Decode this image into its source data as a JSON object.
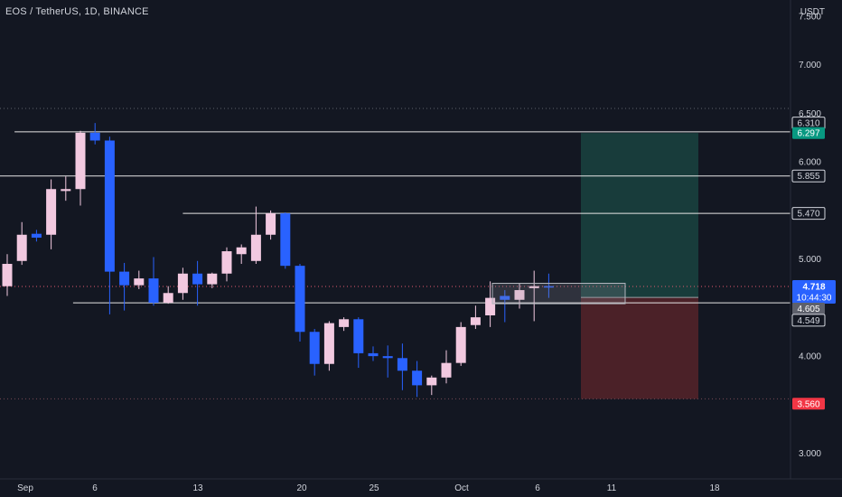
{
  "header": {
    "title": "EOS / TetherUS, 1D, BINANCE"
  },
  "price_axis": {
    "currency": "USDT",
    "ticks": [
      "7.500",
      "7.000",
      "6.500",
      "6.000",
      "5.500",
      "5.000",
      "4.500",
      "4.000",
      "3.500",
      "3.000"
    ]
  },
  "time_axis": {
    "labels": [
      "Sep",
      "6",
      "13",
      "20",
      "25",
      "Oct",
      "6",
      "11",
      "18"
    ]
  },
  "colors": {
    "background": "#131722",
    "up_candle": "#f2c9e0",
    "down_candle": "#2962ff",
    "target_zone": "#1f6b5c",
    "stop_zone": "#7a2a2e",
    "price_tag": "#2962ff",
    "target_tag": "#089981",
    "stop_tag": "#f23645"
  },
  "price_tags": {
    "level_6310": "6.310",
    "target": "6.297",
    "level_5855": "5.855",
    "level_5470": "5.470",
    "last_price": "4.718",
    "countdown": "10:44:30",
    "entry": "4.605",
    "level_4549": "4.549",
    "stop": "3.560"
  },
  "chart_data": {
    "type": "candlestick",
    "symbol": "EOS / TetherUS",
    "interval": "1D",
    "exchange": "BINANCE",
    "ylim": [
      2.55,
      7.62
    ],
    "y_ticks": [
      3.0,
      3.5,
      4.0,
      4.5,
      5.0,
      5.5,
      6.0,
      6.5,
      7.0,
      7.5
    ],
    "candles": [
      {
        "x": 0,
        "o": 4.72,
        "h": 5.05,
        "l": 4.62,
        "c": 4.95
      },
      {
        "x": 1,
        "o": 4.98,
        "h": 5.38,
        "l": 4.94,
        "c": 5.25
      },
      {
        "x": 2,
        "o": 5.26,
        "h": 5.3,
        "l": 5.18,
        "c": 5.22
      },
      {
        "x": 3,
        "o": 5.25,
        "h": 5.82,
        "l": 5.1,
        "c": 5.72
      },
      {
        "x": 4,
        "o": 5.7,
        "h": 5.85,
        "l": 5.6,
        "c": 5.72
      },
      {
        "x": 5,
        "o": 5.72,
        "h": 6.32,
        "l": 5.55,
        "c": 6.3
      },
      {
        "x": 6,
        "o": 6.3,
        "h": 6.4,
        "l": 6.18,
        "c": 6.22
      },
      {
        "x": 7,
        "o": 6.22,
        "h": 6.26,
        "l": 4.43,
        "c": 4.87
      },
      {
        "x": 8,
        "o": 4.87,
        "h": 4.96,
        "l": 4.47,
        "c": 4.73
      },
      {
        "x": 9,
        "o": 4.73,
        "h": 4.88,
        "l": 4.69,
        "c": 4.8
      },
      {
        "x": 10,
        "o": 4.8,
        "h": 5.02,
        "l": 4.52,
        "c": 4.55
      },
      {
        "x": 11,
        "o": 4.55,
        "h": 4.72,
        "l": 4.54,
        "c": 4.65
      },
      {
        "x": 12,
        "o": 4.65,
        "h": 4.91,
        "l": 4.58,
        "c": 4.85
      },
      {
        "x": 13,
        "o": 4.85,
        "h": 4.98,
        "l": 4.52,
        "c": 4.74
      },
      {
        "x": 14,
        "o": 4.74,
        "h": 4.86,
        "l": 4.7,
        "c": 4.85
      },
      {
        "x": 15,
        "o": 4.85,
        "h": 5.12,
        "l": 4.77,
        "c": 5.08
      },
      {
        "x": 16,
        "o": 5.05,
        "h": 5.15,
        "l": 4.95,
        "c": 5.12
      },
      {
        "x": 17,
        "o": 4.98,
        "h": 5.54,
        "l": 4.95,
        "c": 5.25
      },
      {
        "x": 18,
        "o": 5.25,
        "h": 5.5,
        "l": 5.2,
        "c": 5.47
      },
      {
        "x": 19,
        "o": 5.47,
        "h": 5.48,
        "l": 4.9,
        "c": 4.93
      },
      {
        "x": 20,
        "o": 4.93,
        "h": 4.95,
        "l": 4.15,
        "c": 4.25
      },
      {
        "x": 21,
        "o": 4.25,
        "h": 4.28,
        "l": 3.8,
        "c": 3.92
      },
      {
        "x": 22,
        "o": 3.92,
        "h": 4.36,
        "l": 3.85,
        "c": 4.34
      },
      {
        "x": 23,
        "o": 4.3,
        "h": 4.4,
        "l": 4.26,
        "c": 4.38
      },
      {
        "x": 24,
        "o": 4.38,
        "h": 4.4,
        "l": 3.88,
        "c": 4.03
      },
      {
        "x": 25,
        "o": 4.03,
        "h": 4.1,
        "l": 3.95,
        "c": 4.0
      },
      {
        "x": 26,
        "o": 4.0,
        "h": 4.11,
        "l": 3.78,
        "c": 3.98
      },
      {
        "x": 27,
        "o": 3.98,
        "h": 4.13,
        "l": 3.65,
        "c": 3.85
      },
      {
        "x": 28,
        "o": 3.85,
        "h": 3.95,
        "l": 3.58,
        "c": 3.7
      },
      {
        "x": 29,
        "o": 3.7,
        "h": 3.8,
        "l": 3.6,
        "c": 3.78
      },
      {
        "x": 30,
        "o": 3.78,
        "h": 4.06,
        "l": 3.72,
        "c": 3.93
      },
      {
        "x": 31,
        "o": 3.93,
        "h": 4.35,
        "l": 3.9,
        "c": 4.3
      },
      {
        "x": 32,
        "o": 4.32,
        "h": 4.52,
        "l": 4.28,
        "c": 4.4
      },
      {
        "x": 33,
        "o": 4.42,
        "h": 4.77,
        "l": 4.3,
        "c": 4.6
      },
      {
        "x": 34,
        "o": 4.62,
        "h": 4.68,
        "l": 4.35,
        "c": 4.58
      },
      {
        "x": 35,
        "o": 4.58,
        "h": 4.75,
        "l": 4.49,
        "c": 4.68
      },
      {
        "x": 36,
        "o": 4.7,
        "h": 4.88,
        "l": 4.36,
        "c": 4.72
      },
      {
        "x": 37,
        "o": 4.72,
        "h": 4.85,
        "l": 4.6,
        "c": 4.71
      }
    ],
    "horizontal_levels": [
      {
        "price": 6.31,
        "label": "6.310",
        "from_x": 0.5
      },
      {
        "price": 5.855,
        "label": "5.855",
        "from_x": -2
      },
      {
        "price": 5.47,
        "label": "5.470",
        "from_x": 12
      },
      {
        "price": 4.549,
        "label": "4.549",
        "from_x": 4.5
      }
    ],
    "position": {
      "entry": 4.605,
      "target": 6.297,
      "stop": 3.56,
      "x_start": 38.5,
      "x_end": 45.5
    },
    "consolidation_box": {
      "x_start": 32.5,
      "x_end": 40.5,
      "top": 4.75,
      "bottom": 4.54
    },
    "last_price": 4.718
  }
}
